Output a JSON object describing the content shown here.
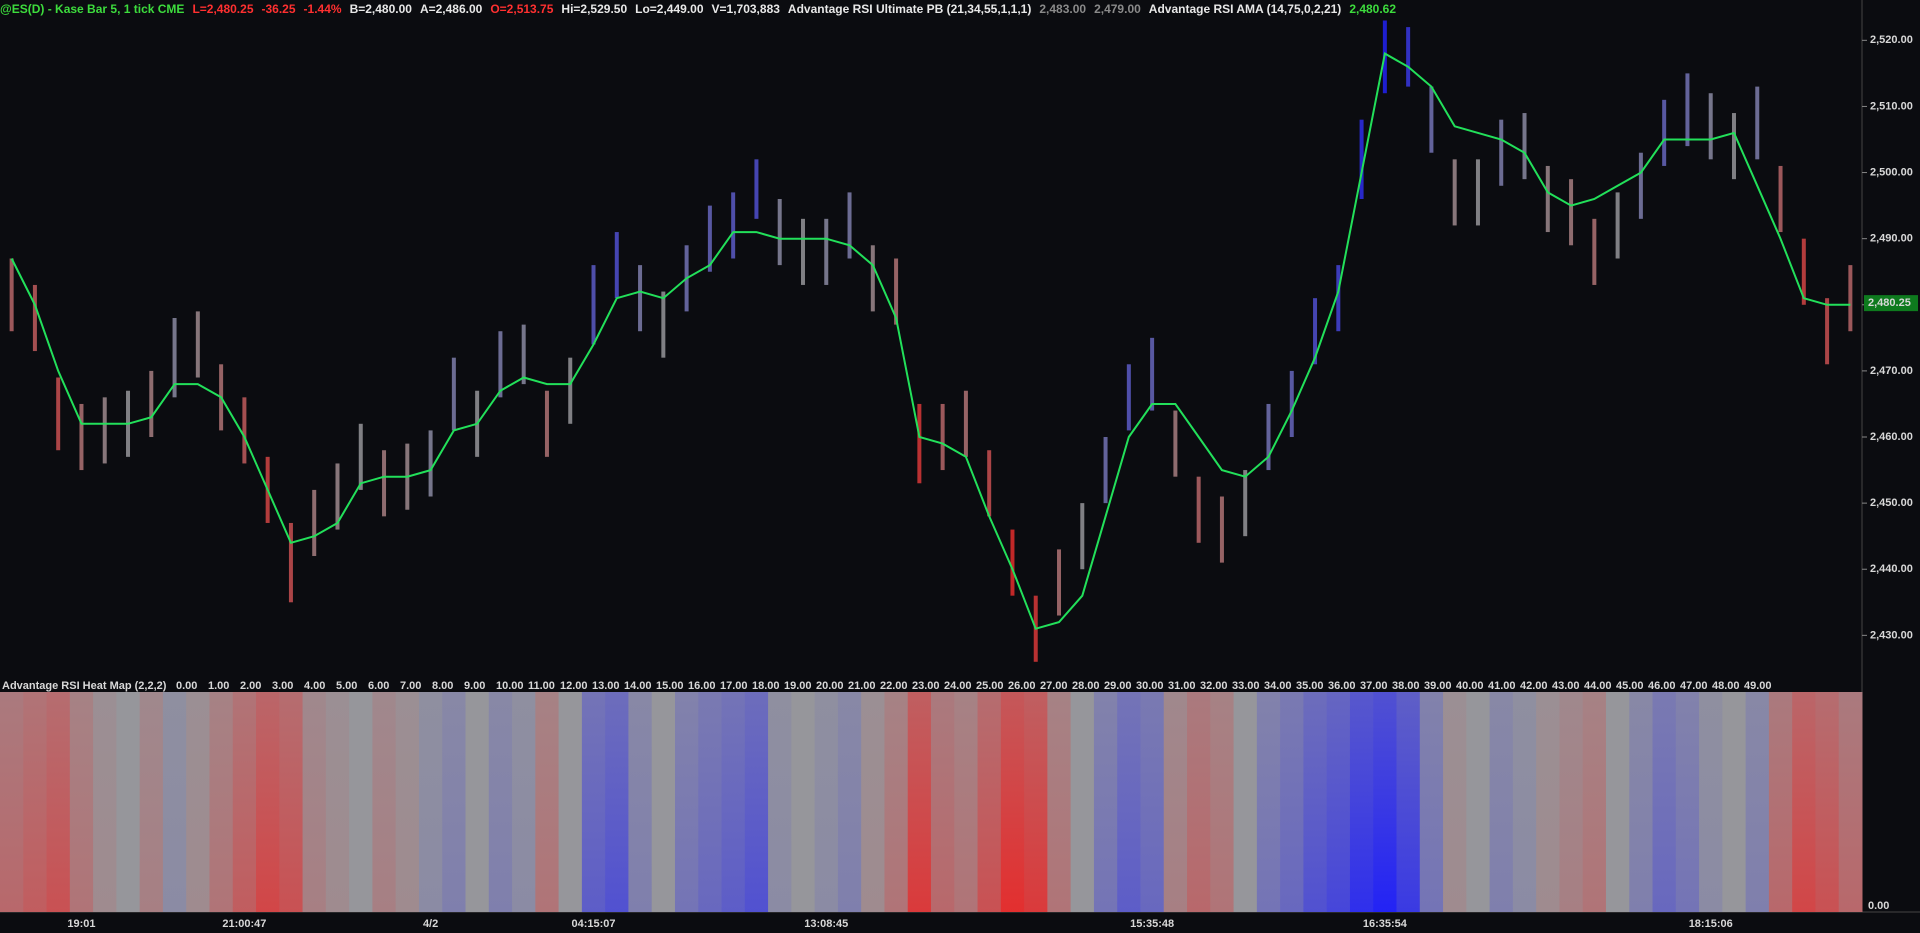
{
  "chart_data": {
    "type": "ohlc-heatmap",
    "header": [
      {
        "text": "@ES(D) - Kase Bar 5, 1 tick  CME",
        "color": "#3ddc3d"
      },
      {
        "text": "L=2,480.25",
        "color": "#ff3030"
      },
      {
        "text": "-36.25",
        "color": "#ff3030"
      },
      {
        "text": "-1.44%",
        "color": "#ff3030"
      },
      {
        "text": "B=2,480.00",
        "color": "#e8e8e8"
      },
      {
        "text": "A=2,486.00",
        "color": "#e8e8e8"
      },
      {
        "text": "O=2,513.75",
        "color": "#ff3030"
      },
      {
        "text": "Hi=2,529.50",
        "color": "#e8e8e8"
      },
      {
        "text": "Lo=2,449.00",
        "color": "#e8e8e8"
      },
      {
        "text": "V=1,703,883",
        "color": "#e8e8e8"
      },
      {
        "text": "Advantage RSI Ultimate PB (21,34,55,1,1,1)",
        "color": "#e8e8e8"
      },
      {
        "text": "2,483.00",
        "color": "#8a8a8a"
      },
      {
        "text": "2,479.00",
        "color": "#8a8a8a"
      },
      {
        "text": "Advantage RSI AMA (14,75,0,2,21)",
        "color": "#e8e8e8"
      },
      {
        "text": "2,480.62",
        "color": "#3ddc3d"
      }
    ],
    "categories": [
      null,
      null,
      null,
      "19:01",
      null,
      null,
      null,
      null,
      null,
      null,
      "21:00:47",
      null,
      null,
      null,
      null,
      null,
      null,
      null,
      "4/2",
      null,
      null,
      null,
      null,
      null,
      null,
      "04:15:07",
      null,
      null,
      null,
      null,
      null,
      null,
      null,
      null,
      null,
      "13:08:45",
      null,
      null,
      null,
      null,
      null,
      null,
      null,
      null,
      null,
      null,
      null,
      null,
      null,
      "15:35:48",
      null,
      null,
      null,
      null,
      null,
      null,
      null,
      null,
      null,
      "16:35:54",
      null,
      null,
      null,
      null,
      null,
      null,
      null,
      null,
      null,
      null,
      null,
      null,
      null,
      "18:15:06",
      null,
      null,
      null,
      null,
      null,
      null
    ],
    "high": [
      2487,
      2483,
      2469,
      2465,
      2466,
      2467,
      2470,
      2478,
      2479,
      2471,
      2466,
      2457,
      2447,
      2452,
      2456,
      2462,
      2458,
      2459,
      2461,
      2472,
      2467,
      2476,
      2477,
      2467,
      2472,
      2486,
      2491,
      2486,
      2482,
      2489,
      2495,
      2497,
      2502,
      2496,
      2493,
      2493,
      2497,
      2489,
      2487,
      2465,
      2465,
      2467,
      2458,
      2446,
      2436,
      2443,
      2450,
      2460,
      2471,
      2475,
      2464,
      2454,
      2451,
      2455,
      2465,
      2470,
      2481,
      2486,
      2508,
      2523,
      2522,
      2513,
      2502,
      2502,
      2508,
      2509,
      2501,
      2499,
      2493,
      2497,
      2503,
      2511,
      2515,
      2512,
      2509,
      2513,
      2501,
      2490,
      2481,
      2486
    ],
    "low": [
      2476,
      2473,
      2458,
      2455,
      2456,
      2457,
      2460,
      2466,
      2469,
      2461,
      2456,
      2447,
      2435,
      2442,
      2446,
      2452,
      2448,
      2449,
      2451,
      2461,
      2457,
      2466,
      2468,
      2457,
      2462,
      2474,
      2481,
      2476,
      2472,
      2479,
      2485,
      2487,
      2493,
      2486,
      2483,
      2483,
      2487,
      2479,
      2477,
      2453,
      2455,
      2457,
      2448,
      2436,
      2426,
      2433,
      2440,
      2450,
      2461,
      2464,
      2454,
      2444,
      2441,
      2445,
      2455,
      2460,
      2471,
      2476,
      2496,
      2512,
      2513,
      2503,
      2492,
      2492,
      2498,
      2499,
      2491,
      2489,
      2483,
      2487,
      2493,
      2501,
      2504,
      2502,
      2499,
      2502,
      2491,
      2480,
      2471,
      2476
    ],
    "ama": [
      2487,
      2480,
      2470,
      2462,
      2462,
      2462,
      2463,
      2468,
      2468,
      2466,
      2460,
      2452,
      2444,
      2445,
      2447,
      2453,
      2454,
      2454,
      2455,
      2461,
      2462,
      2467,
      2469,
      2468,
      2468,
      2474,
      2481,
      2482,
      2481,
      2484,
      2486,
      2491,
      2491,
      2490,
      2490,
      2490,
      2489,
      2486,
      2478,
      2460,
      2459,
      2457,
      2448,
      2440,
      2431,
      2432,
      2436,
      2448,
      2460,
      2465,
      2465,
      2460,
      2455,
      2454,
      2457,
      2464,
      2472,
      2482,
      2500,
      2518,
      2516,
      2513,
      2507,
      2506,
      2505,
      2503,
      2497,
      2495,
      2496,
      2498,
      2500,
      2505,
      2505,
      2505,
      2506,
      2498,
      2490,
      2481,
      2480,
      2480
    ],
    "ama_color": "#22e05a",
    "heat": [
      -40,
      -50,
      -60,
      -30,
      -10,
      0,
      -20,
      10,
      -10,
      -30,
      -50,
      -70,
      -60,
      -20,
      -10,
      0,
      -20,
      -10,
      10,
      20,
      0,
      20,
      10,
      -30,
      0,
      50,
      60,
      20,
      0,
      30,
      40,
      50,
      60,
      10,
      0,
      10,
      20,
      -10,
      -30,
      -80,
      -40,
      -30,
      -60,
      -90,
      -80,
      -30,
      0,
      30,
      50,
      40,
      -20,
      -40,
      -30,
      0,
      30,
      40,
      60,
      70,
      90,
      100,
      80,
      30,
      -10,
      0,
      20,
      10,
      -10,
      -20,
      -30,
      0,
      20,
      40,
      30,
      10,
      0,
      20,
      -40,
      -70,
      -60,
      -40
    ],
    "ylim": [
      2423.7,
      2526.1
    ],
    "yticks": [
      {
        "value": 2430,
        "label": "2,430.00"
      },
      {
        "value": 2440,
        "label": "2,440.00"
      },
      {
        "value": 2450,
        "label": "2,450.00"
      },
      {
        "value": 2460,
        "label": "2,460.00"
      },
      {
        "value": 2470,
        "label": "2,470.00"
      },
      {
        "value": 2480,
        "label": "2,480.00"
      },
      {
        "value": 2490,
        "label": "2,490.00"
      },
      {
        "value": 2500,
        "label": "2,500.00"
      },
      {
        "value": 2510,
        "label": "2,510.00"
      },
      {
        "value": 2520,
        "label": "2,520.00"
      }
    ],
    "last_price": {
      "value": 2480.25,
      "label": "2,480.25"
    },
    "heat_title": "Advantage RSI Heat Map (2,2,2)",
    "heat_labels": [
      "0.00",
      "1.00",
      "2.00",
      "3.00",
      "4.00",
      "5.00",
      "6.00",
      "7.00",
      "8.00",
      "9.00",
      "10.00",
      "11.00",
      "12.00",
      "13.00",
      "14.00",
      "15.00",
      "16.00",
      "17.00",
      "18.00",
      "19.00",
      "20.00",
      "21.00",
      "22.00",
      "23.00",
      "24.00",
      "25.00",
      "26.00",
      "27.00",
      "28.00",
      "29.00",
      "30.00",
      "31.00",
      "32.00",
      "33.00",
      "34.00",
      "35.00",
      "36.00",
      "37.00",
      "38.00",
      "39.00",
      "40.00",
      "41.00",
      "42.00",
      "43.00",
      "44.00",
      "45.00",
      "46.00",
      "47.00",
      "48.00",
      "49.00"
    ]
  }
}
